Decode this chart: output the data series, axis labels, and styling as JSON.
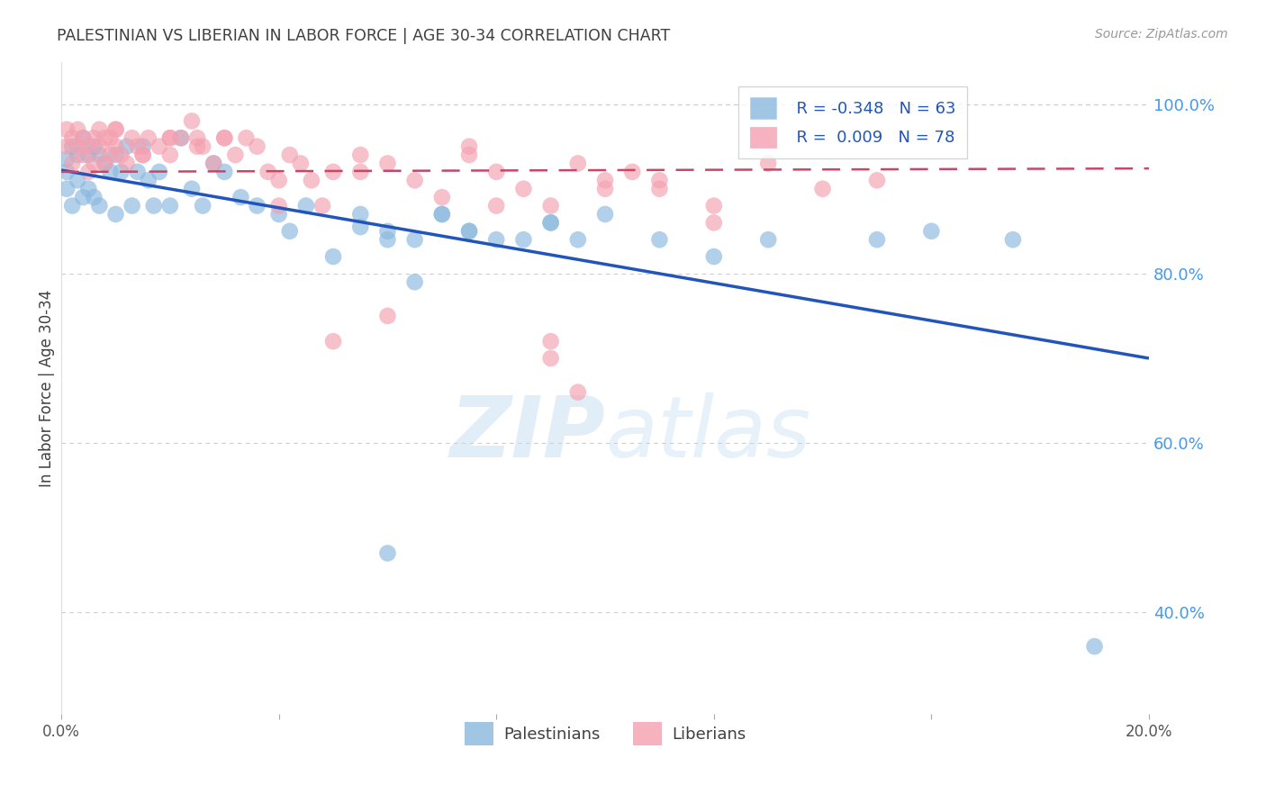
{
  "title": "PALESTINIAN VS LIBERIAN IN LABOR FORCE | AGE 30-34 CORRELATION CHART",
  "source": "Source: ZipAtlas.com",
  "ylabel": "In Labor Force | Age 30-34",
  "xlim": [
    0.0,
    0.2
  ],
  "ylim": [
    0.28,
    1.05
  ],
  "yticks": [
    0.4,
    0.6,
    0.8,
    1.0
  ],
  "ytick_labels": [
    "40.0%",
    "60.0%",
    "80.0%",
    "100.0%"
  ],
  "xtick_vals": [
    0.0,
    0.04,
    0.08,
    0.12,
    0.16,
    0.2
  ],
  "xtick_labels": [
    "0.0%",
    "",
    "",
    "",
    "",
    "20.0%"
  ],
  "blue_color": "#89B8DE",
  "pink_color": "#F4A0B0",
  "blue_line_color": "#2255BB",
  "pink_line_color": "#CC4466",
  "title_color": "#404040",
  "source_color": "#808080",
  "watermark_zip": "ZIP",
  "watermark_atlas": "atlas",
  "background_color": "#FFFFFF",
  "blue_R": "-0.348",
  "blue_N": "63",
  "pink_R": "0.009",
  "pink_N": "78",
  "blue_line_x": [
    0.0,
    0.2
  ],
  "blue_line_y": [
    0.922,
    0.7
  ],
  "pink_line_x": [
    0.0,
    0.2
  ],
  "pink_line_y": [
    0.92,
    0.924
  ],
  "blue_points_x": [
    0.001,
    0.001,
    0.001,
    0.002,
    0.002,
    0.003,
    0.003,
    0.004,
    0.004,
    0.005,
    0.005,
    0.006,
    0.006,
    0.007,
    0.007,
    0.008,
    0.009,
    0.01,
    0.01,
    0.011,
    0.012,
    0.013,
    0.014,
    0.015,
    0.016,
    0.017,
    0.018,
    0.02,
    0.022,
    0.024,
    0.026,
    0.028,
    0.03,
    0.033,
    0.036,
    0.04,
    0.042,
    0.045,
    0.05,
    0.055,
    0.06,
    0.065,
    0.07,
    0.075,
    0.08,
    0.085,
    0.09,
    0.095,
    0.1,
    0.11,
    0.12,
    0.13,
    0.055,
    0.06,
    0.065,
    0.07,
    0.075,
    0.06,
    0.09,
    0.15,
    0.16,
    0.175,
    0.19
  ],
  "blue_points_y": [
    0.935,
    0.92,
    0.9,
    0.95,
    0.88,
    0.94,
    0.91,
    0.96,
    0.89,
    0.94,
    0.9,
    0.95,
    0.89,
    0.94,
    0.88,
    0.93,
    0.92,
    0.94,
    0.87,
    0.92,
    0.95,
    0.88,
    0.92,
    0.95,
    0.91,
    0.88,
    0.92,
    0.88,
    0.96,
    0.9,
    0.88,
    0.93,
    0.92,
    0.89,
    0.88,
    0.87,
    0.85,
    0.88,
    0.82,
    0.87,
    0.84,
    0.79,
    0.87,
    0.85,
    0.84,
    0.84,
    0.86,
    0.84,
    0.87,
    0.84,
    0.82,
    0.84,
    0.855,
    0.85,
    0.84,
    0.87,
    0.85,
    0.47,
    0.86,
    0.84,
    0.85,
    0.84,
    0.36
  ],
  "pink_points_x": [
    0.001,
    0.001,
    0.002,
    0.002,
    0.003,
    0.003,
    0.004,
    0.004,
    0.005,
    0.005,
    0.006,
    0.006,
    0.007,
    0.007,
    0.008,
    0.008,
    0.009,
    0.009,
    0.01,
    0.01,
    0.011,
    0.012,
    0.013,
    0.014,
    0.015,
    0.016,
    0.018,
    0.02,
    0.022,
    0.024,
    0.026,
    0.028,
    0.03,
    0.032,
    0.034,
    0.036,
    0.038,
    0.04,
    0.042,
    0.044,
    0.046,
    0.048,
    0.05,
    0.055,
    0.06,
    0.065,
    0.07,
    0.075,
    0.08,
    0.085,
    0.09,
    0.095,
    0.1,
    0.105,
    0.11,
    0.12,
    0.095,
    0.05,
    0.075,
    0.09,
    0.1,
    0.11,
    0.12,
    0.13,
    0.14,
    0.15,
    0.03,
    0.06,
    0.04,
    0.02,
    0.025,
    0.055,
    0.08,
    0.09,
    0.01,
    0.015,
    0.02,
    0.025
  ],
  "pink_points_y": [
    0.97,
    0.95,
    0.96,
    0.93,
    0.97,
    0.95,
    0.96,
    0.94,
    0.95,
    0.92,
    0.96,
    0.93,
    0.97,
    0.95,
    0.96,
    0.93,
    0.96,
    0.94,
    0.97,
    0.95,
    0.94,
    0.93,
    0.96,
    0.95,
    0.94,
    0.96,
    0.95,
    0.94,
    0.96,
    0.98,
    0.95,
    0.93,
    0.96,
    0.94,
    0.96,
    0.95,
    0.92,
    0.91,
    0.94,
    0.93,
    0.91,
    0.88,
    0.92,
    0.94,
    0.93,
    0.91,
    0.89,
    0.95,
    0.92,
    0.9,
    0.88,
    0.93,
    0.91,
    0.92,
    0.91,
    0.88,
    0.66,
    0.72,
    0.94,
    0.72,
    0.9,
    0.9,
    0.86,
    0.93,
    0.9,
    0.91,
    0.96,
    0.75,
    0.88,
    0.96,
    0.96,
    0.92,
    0.88,
    0.7,
    0.97,
    0.94,
    0.96,
    0.95
  ]
}
